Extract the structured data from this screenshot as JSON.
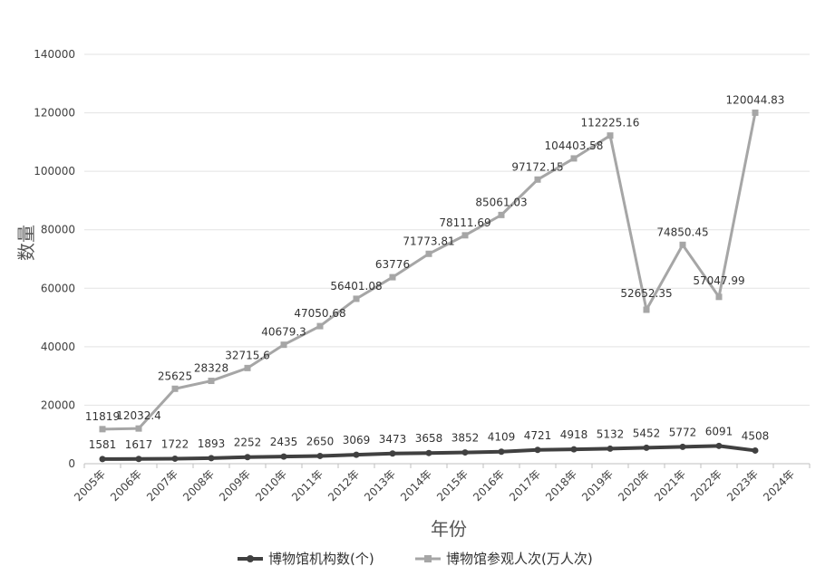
{
  "chart_data": {
    "type": "line",
    "title": "",
    "xlabel": "年份",
    "ylabel": "数量",
    "ylim": [
      0,
      140000
    ],
    "y_ticks": [
      0,
      20000,
      40000,
      60000,
      80000,
      100000,
      120000,
      140000
    ],
    "y_tick_labels": [
      "0",
      "20000",
      "40000",
      "60000",
      "80000",
      "100000",
      "120000",
      "140000"
    ],
    "grid": "horizontal",
    "legend_position": "bottom",
    "categories": [
      "2005年",
      "2006年",
      "2007年",
      "2008年",
      "2009年",
      "2010年",
      "2011年",
      "2012年",
      "2013年",
      "2014年",
      "2015年",
      "2016年",
      "2017年",
      "2018年",
      "2019年",
      "2020年",
      "2021年",
      "2022年",
      "2023年",
      "2024年"
    ],
    "series": [
      {
        "name": "博物馆机构数(个)",
        "color": "#404040",
        "marker": "circle",
        "values": [
          1581,
          1617,
          1722,
          1893,
          2252,
          2435,
          2650,
          3069,
          3473,
          3658,
          3852,
          4109,
          4721,
          4918,
          5132,
          5452,
          5772,
          6091,
          4508,
          null
        ],
        "labels": [
          "1581",
          "1617",
          "1722",
          "1893",
          "2252",
          "2435",
          "2650",
          "3069",
          "3473",
          "3658",
          "3852",
          "4109",
          "4721",
          "4918",
          "5132",
          "5452",
          "5772",
          "6091",
          "4508",
          null
        ]
      },
      {
        "name": "博物馆参观人次(万人次)",
        "color": "#a6a6a6",
        "marker": "square",
        "values": [
          11819,
          12032.4,
          25625,
          28328,
          32715.6,
          40679.3,
          47050.68,
          56401.08,
          63776,
          71773.81,
          78111.69,
          85061.03,
          97172.15,
          104403.58,
          112225.16,
          52652.35,
          74850.45,
          57047.99,
          120044.83,
          null
        ],
        "labels": [
          "11819",
          "12032.4",
          "25625",
          "28328",
          "32715.6",
          "40679.3",
          "47050.68",
          "56401.08",
          "63776",
          "71773.81",
          "78111.69",
          "85061.03",
          "97172.15",
          "104403.58",
          "112225.16",
          "52652.35",
          "74850.45",
          "57047.99",
          "120044.83",
          null
        ]
      }
    ]
  }
}
